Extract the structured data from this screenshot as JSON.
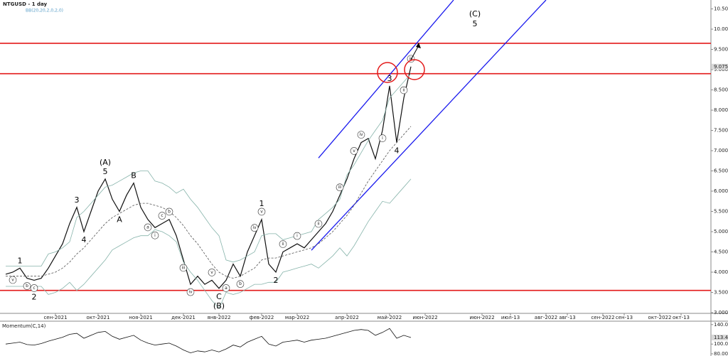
{
  "chart_data": [
    {
      "type": "line",
      "title": "NTGUSD - 1 day",
      "subtitle": "BB(20,20,2,0,2,0)",
      "categories": [
        null,
        null,
        null,
        null,
        null,
        null,
        null,
        "сен-2021",
        null,
        null,
        null,
        null,
        null,
        "окт-2021",
        null,
        null,
        null,
        null,
        null,
        "ноя-2021",
        null,
        null,
        null,
        null,
        null,
        "дек-2021",
        null,
        null,
        null,
        null,
        "янв-2022",
        null,
        null,
        null,
        null,
        null,
        "фев-2022",
        null,
        null,
        null,
        null,
        "мар-2022",
        null,
        null,
        null,
        null,
        null,
        null,
        "апр-2022",
        null,
        null,
        null,
        null,
        null,
        "май-2022",
        null,
        null,
        null,
        null,
        "июн-2022",
        null,
        null,
        null,
        null,
        null,
        null,
        null,
        "июн-2022",
        null,
        null,
        null,
        "июл-13",
        null,
        null,
        null,
        null,
        "авг-2022",
        null,
        null,
        "авг-13",
        null,
        null,
        null,
        null,
        "сен-2022",
        null,
        null,
        "сен-13",
        null,
        null,
        null,
        null,
        "окт-2022",
        null,
        null,
        "окт-13",
        null,
        null,
        null,
        null
      ],
      "series": [
        {
          "color": "#111111",
          "values": [
            3.95,
            4.0,
            4.1,
            3.85,
            3.8,
            3.85,
            4.1,
            4.4,
            4.7,
            5.2,
            5.6,
            5.0,
            5.5,
            6.0,
            6.3,
            5.8,
            5.5,
            5.9,
            6.2,
            5.6,
            5.3,
            5.1,
            5.2,
            5.3,
            4.9,
            4.3,
            3.7,
            3.9,
            3.7,
            3.8,
            3.6,
            3.8,
            4.2,
            3.9,
            4.5,
            4.9,
            5.3,
            4.2,
            4.0,
            4.5,
            4.6,
            4.7,
            4.6,
            4.8,
            5.0,
            5.2,
            5.5,
            5.9,
            6.3,
            6.8,
            7.2,
            7.3,
            6.8,
            7.5,
            8.6,
            7.2,
            8.3,
            9.075,
            null,
            null,
            null,
            null,
            null,
            null,
            null,
            null,
            null,
            null,
            null,
            null,
            null,
            null,
            null,
            null,
            null,
            null,
            null,
            null,
            null,
            null,
            null,
            null,
            null,
            null,
            null,
            null,
            null,
            null,
            null,
            null,
            null,
            null,
            null,
            null,
            null,
            null,
            null,
            null,
            null,
            null
          ]
        },
        {
          "color": "#86b3aa",
          "values": [
            4.15,
            4.15,
            4.15,
            4.15,
            4.15,
            4.15,
            4.45,
            4.5,
            4.6,
            4.75,
            5.35,
            5.5,
            5.7,
            5.9,
            6.1,
            6.15,
            6.25,
            6.35,
            6.45,
            6.5,
            6.5,
            6.25,
            6.2,
            6.1,
            5.95,
            6.05,
            5.8,
            5.6,
            5.35,
            5.1,
            4.9,
            4.3,
            4.25,
            4.3,
            4.4,
            4.5,
            4.9,
            4.95,
            4.95,
            4.8,
            4.85,
            4.9,
            4.95,
            5.0,
            5.3,
            5.45,
            5.6,
            5.8,
            6.4,
            6.65,
            6.95,
            7.25,
            7.5,
            7.75,
            8.3,
            8.5,
            8.7,
            8.9,
            null,
            null,
            null,
            null,
            null,
            null,
            null,
            null,
            null,
            null,
            null,
            null,
            null,
            null,
            null,
            null,
            null,
            null,
            null,
            null,
            null,
            null,
            null,
            null,
            null,
            null,
            null,
            null,
            null,
            null,
            null,
            null,
            null,
            null,
            null,
            null,
            null,
            null,
            null,
            null,
            null,
            null
          ]
        },
        {
          "color": "#555555",
          "dash": true,
          "values": [
            3.9,
            3.9,
            3.9,
            3.9,
            3.9,
            3.9,
            3.95,
            4.0,
            4.1,
            4.25,
            4.45,
            4.6,
            4.8,
            5.0,
            5.2,
            5.35,
            5.45,
            5.55,
            5.65,
            5.7,
            5.7,
            5.65,
            5.6,
            5.5,
            5.35,
            5.15,
            4.9,
            4.7,
            4.45,
            4.2,
            4.0,
            3.9,
            3.85,
            3.9,
            4.0,
            4.1,
            4.3,
            4.35,
            4.35,
            4.4,
            4.45,
            4.5,
            4.55,
            4.6,
            4.7,
            4.85,
            5.0,
            5.2,
            5.4,
            5.65,
            5.95,
            6.25,
            6.5,
            6.75,
            7.0,
            7.2,
            7.4,
            7.6,
            null,
            null,
            null,
            null,
            null,
            null,
            null,
            null,
            null,
            null,
            null,
            null,
            null,
            null,
            null,
            null,
            null,
            null,
            null,
            null,
            null,
            null,
            null,
            null,
            null,
            null,
            null,
            null,
            null,
            null,
            null,
            null,
            null,
            null,
            null,
            null,
            null,
            null,
            null,
            null,
            null,
            null
          ]
        },
        {
          "color": "#86b3aa",
          "values": [
            3.65,
            3.65,
            3.65,
            3.65,
            3.65,
            3.65,
            3.45,
            3.5,
            3.6,
            3.75,
            3.55,
            3.7,
            3.9,
            4.1,
            4.3,
            4.55,
            4.65,
            4.75,
            4.85,
            4.9,
            4.9,
            5.05,
            5.0,
            4.9,
            4.75,
            4.25,
            4.0,
            3.8,
            3.55,
            3.3,
            3.1,
            3.5,
            3.45,
            3.5,
            3.6,
            3.7,
            3.7,
            3.75,
            3.75,
            4.0,
            4.05,
            4.1,
            4.15,
            4.2,
            4.1,
            4.25,
            4.4,
            4.6,
            4.4,
            4.65,
            4.95,
            5.25,
            5.5,
            5.75,
            5.7,
            5.9,
            6.1,
            6.3,
            null,
            null,
            null,
            null,
            null,
            null,
            null,
            null,
            null,
            null,
            null,
            null,
            null,
            null,
            null,
            null,
            null,
            null,
            null,
            null,
            null,
            null,
            null,
            null,
            null,
            null,
            null,
            null,
            null,
            null,
            null,
            null,
            null,
            null,
            null,
            null,
            null,
            null,
            null,
            null,
            null,
            null
          ]
        }
      ],
      "wave_labels": [
        null,
        null,
        "1",
        null,
        "2",
        null,
        null,
        null,
        null,
        null,
        "3",
        "4",
        null,
        null,
        [
          "(A)",
          "5"
        ],
        null,
        "A",
        null,
        "B",
        null,
        null,
        null,
        null,
        null,
        null,
        null,
        null,
        null,
        null,
        null,
        [
          "C",
          "(B)"
        ],
        null,
        null,
        null,
        null,
        null,
        "1",
        null,
        "2",
        null,
        null,
        null,
        null,
        null,
        null,
        null,
        null,
        null,
        null,
        null,
        null,
        null,
        null,
        null,
        "3",
        "4",
        null,
        null,
        null,
        null,
        null,
        null,
        null,
        null,
        null,
        null,
        [
          "(C)",
          "5"
        ],
        null,
        null,
        null,
        null,
        null,
        null,
        null,
        null,
        null,
        null,
        null,
        null,
        null,
        null,
        null,
        null,
        null,
        null,
        null,
        null,
        null,
        null,
        null,
        null,
        null,
        null,
        null,
        null,
        null,
        null,
        null,
        null,
        null
      ],
      "minor_labels": [
        null,
        "v",
        null,
        "b",
        "c",
        null,
        null,
        null,
        null,
        null,
        null,
        null,
        null,
        null,
        null,
        null,
        null,
        null,
        null,
        null,
        "a",
        "i",
        "c",
        "b",
        null,
        "iii",
        "iv",
        null,
        null,
        "v",
        null,
        "a",
        null,
        "b",
        null,
        "iv",
        "v",
        null,
        null,
        "ii",
        null,
        "i",
        null,
        null,
        "ii",
        null,
        null,
        "iii",
        null,
        "v",
        "iv",
        null,
        null,
        "i",
        null,
        null,
        "ii",
        "iii",
        null,
        null,
        null,
        null,
        null,
        null,
        null,
        null,
        null,
        null,
        null,
        null,
        null,
        null,
        null,
        null,
        null,
        null,
        null,
        null,
        null,
        null,
        null,
        null,
        null,
        null,
        null,
        null,
        null,
        null,
        null,
        null,
        null,
        null,
        null,
        null,
        null,
        null,
        null,
        null,
        null,
        null
      ],
      "levels": [
        9.65,
        8.9,
        3.55
      ],
      "level_color": "#e31a1a",
      "channel_lines": [
        [
          [
            44,
            6.82
          ],
          [
            63,
            10.72
          ]
        ],
        [
          [
            43,
            4.54
          ],
          [
            76,
            10.72
          ]
        ]
      ],
      "channel_color": "#1a1aee",
      "last_value": 9.075,
      "ylim": [
        3,
        10.72
      ],
      "yticks": [
        {
          "value": 3,
          "label": "3.000"
        },
        {
          "value": 3.5,
          "label": "3.500"
        },
        {
          "value": 4,
          "label": "4.000"
        },
        {
          "value": 4.5,
          "label": "4.500"
        },
        {
          "value": 5,
          "label": "5.000"
        },
        {
          "value": 5.5,
          "label": "5.500"
        },
        {
          "value": 6,
          "label": "6.000"
        },
        {
          "value": 6.5,
          "label": "6.500"
        },
        {
          "value": 7,
          "label": "7.000"
        },
        {
          "value": 7.5,
          "label": "7.500"
        },
        {
          "value": 8,
          "label": "8.000"
        },
        {
          "value": 8.5,
          "label": "8.500"
        },
        {
          "value": 9,
          "label": "9.000"
        },
        {
          "value": 9.5,
          "label": "9.500"
        },
        {
          "value": 10,
          "label": "10.000"
        },
        {
          "value": 10.5,
          "label": "10.500"
        }
      ]
    },
    {
      "type": "line",
      "title": "Momentum(C,14)",
      "color": "#111111",
      "values": [
        100,
        102,
        104,
        99,
        98,
        101,
        106,
        110,
        114,
        120,
        122,
        112,
        118,
        124,
        126,
        116,
        110,
        114,
        118,
        108,
        102,
        98,
        100,
        102,
        96,
        88,
        82,
        86,
        84,
        88,
        84,
        90,
        98,
        94,
        104,
        110,
        116,
        100,
        96,
        104,
        106,
        108,
        104,
        108,
        110,
        112,
        116,
        120,
        124,
        128,
        130,
        128,
        118,
        124,
        132,
        112,
        118,
        113.49,
        null,
        null,
        null,
        null,
        null,
        null,
        null,
        null,
        null,
        null,
        null,
        null,
        null,
        null,
        null,
        null,
        null,
        null,
        null,
        null,
        null,
        null,
        null,
        null,
        null,
        null,
        null,
        null,
        null,
        null,
        null,
        null,
        null,
        null,
        null,
        null,
        null,
        null,
        null,
        null,
        null,
        null
      ],
      "last_value": 113.49,
      "ylim": [
        77,
        147
      ],
      "yticks": [
        {
          "value": 140,
          "label": "140.00"
        },
        {
          "value": 100,
          "label": "100.00"
        },
        {
          "value": 80,
          "label": "80.00"
        }
      ]
    }
  ]
}
